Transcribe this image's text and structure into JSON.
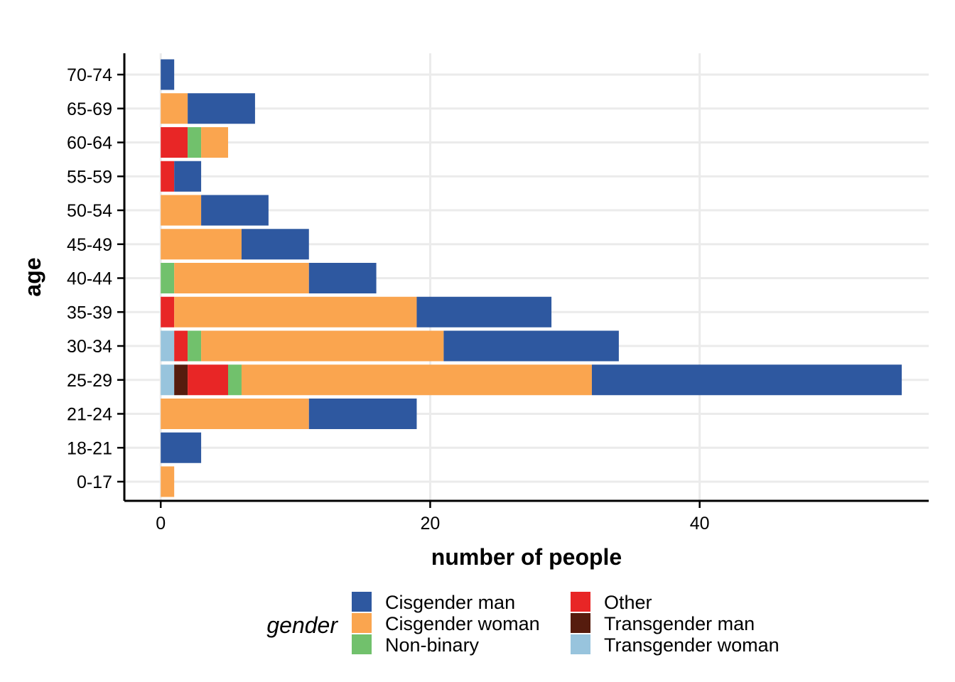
{
  "chart_data": {
    "type": "bar",
    "orientation": "horizontal",
    "stacked": true,
    "xlabel": "number of people",
    "ylabel": "age",
    "xlim": [
      -2.7,
      57
    ],
    "x_ticks": [
      0,
      20,
      40
    ],
    "grid": true,
    "legend_title": "gender",
    "legend_position": "bottom",
    "categories": [
      "0-17",
      "18-21",
      "21-24",
      "25-29",
      "30-34",
      "35-39",
      "40-44",
      "45-49",
      "50-54",
      "55-59",
      "60-64",
      "65-69",
      "70-74"
    ],
    "stack_order": [
      "Transgender woman",
      "Transgender man",
      "Other",
      "Non-binary",
      "Cisgender woman",
      "Cisgender man"
    ],
    "legend_order": [
      "Cisgender man",
      "Cisgender woman",
      "Non-binary",
      "Other",
      "Transgender man",
      "Transgender woman"
    ],
    "series": [
      {
        "name": "Cisgender man",
        "color": "#2e58a0",
        "values": [
          0,
          3,
          8,
          23,
          13,
          10,
          5,
          5,
          5,
          2,
          0,
          5,
          1
        ]
      },
      {
        "name": "Cisgender woman",
        "color": "#faa54f",
        "values": [
          1,
          0,
          11,
          26,
          18,
          18,
          10,
          6,
          3,
          0,
          2,
          2,
          0
        ]
      },
      {
        "name": "Non-binary",
        "color": "#71c16c",
        "values": [
          0,
          0,
          0,
          1,
          1,
          0,
          1,
          0,
          0,
          0,
          1,
          0,
          0
        ]
      },
      {
        "name": "Other",
        "color": "#e82626",
        "values": [
          0,
          0,
          0,
          3,
          1,
          1,
          0,
          0,
          0,
          1,
          2,
          0,
          0
        ]
      },
      {
        "name": "Transgender man",
        "color": "#561c0e",
        "values": [
          0,
          0,
          0,
          1,
          0,
          0,
          0,
          0,
          0,
          0,
          0,
          0,
          0
        ]
      },
      {
        "name": "Transgender woman",
        "color": "#98c4dd",
        "values": [
          0,
          0,
          0,
          1,
          1,
          0,
          0,
          0,
          0,
          0,
          0,
          0,
          0
        ]
      }
    ]
  }
}
